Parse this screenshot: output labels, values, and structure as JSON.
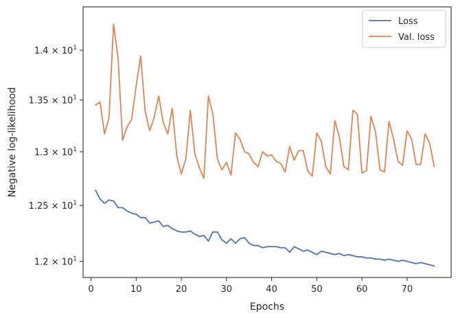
{
  "chart_data": {
    "type": "line",
    "title": "",
    "xlabel": "Epochs",
    "ylabel": "Negative log-likelihood",
    "xlim": [
      -1.75,
      79.75
    ],
    "ylim": [
      11.86,
      14.45
    ],
    "yscale": "log",
    "grid": false,
    "legend_position": "top-right",
    "x_ticks": [
      0,
      10,
      20,
      30,
      40,
      50,
      60,
      70
    ],
    "x_tick_labels": [
      "0",
      "10",
      "20",
      "30",
      "40",
      "50",
      "60",
      "70"
    ],
    "y_ticks": [
      12.0,
      12.5,
      13.0,
      13.5,
      14.0
    ],
    "y_tick_labels": [
      {
        "mantissa": "1.2",
        "base": "10",
        "exp": "1"
      },
      {
        "mantissa": "1.25",
        "base": "10",
        "exp": "1"
      },
      {
        "mantissa": "1.3",
        "base": "10",
        "exp": "1"
      },
      {
        "mantissa": "1.35",
        "base": "10",
        "exp": "1"
      },
      {
        "mantissa": "1.4",
        "base": "10",
        "exp": "1"
      }
    ],
    "x": [
      1,
      2,
      3,
      4,
      5,
      6,
      7,
      8,
      9,
      10,
      11,
      12,
      13,
      14,
      15,
      16,
      17,
      18,
      19,
      20,
      21,
      22,
      23,
      24,
      25,
      26,
      27,
      28,
      29,
      30,
      31,
      32,
      33,
      34,
      35,
      36,
      37,
      38,
      39,
      40,
      41,
      42,
      43,
      44,
      45,
      46,
      47,
      48,
      49,
      50,
      51,
      52,
      53,
      54,
      55,
      56,
      57,
      58,
      59,
      60,
      61,
      62,
      63,
      64,
      65,
      66,
      67,
      68,
      69,
      70,
      71,
      72,
      73,
      74,
      75,
      76
    ],
    "series": [
      {
        "name": "Loss",
        "color": "#4c72b0",
        "values": [
          12.64,
          12.56,
          12.52,
          12.55,
          12.54,
          12.48,
          12.48,
          12.45,
          12.43,
          12.42,
          12.39,
          12.39,
          12.34,
          12.35,
          12.36,
          12.31,
          12.32,
          12.29,
          12.27,
          12.26,
          12.26,
          12.27,
          12.24,
          12.22,
          12.23,
          12.18,
          12.26,
          12.26,
          12.19,
          12.16,
          12.2,
          12.16,
          12.2,
          12.21,
          12.16,
          12.14,
          12.14,
          12.12,
          12.13,
          12.13,
          12.13,
          12.12,
          12.12,
          12.08,
          12.13,
          12.11,
          12.09,
          12.1,
          12.08,
          12.06,
          12.09,
          12.08,
          12.07,
          12.06,
          12.07,
          12.05,
          12.06,
          12.05,
          12.04,
          12.04,
          12.03,
          12.03,
          12.02,
          12.02,
          12.01,
          12.02,
          12.01,
          12.0,
          12.01,
          12.0,
          11.99,
          11.98,
          11.99,
          11.98,
          11.97,
          11.96
        ]
      },
      {
        "name": "Val. loss",
        "color": "#dd8452",
        "values": [
          13.45,
          13.48,
          13.17,
          13.33,
          14.27,
          13.92,
          13.11,
          13.24,
          13.31,
          13.64,
          13.94,
          13.39,
          13.2,
          13.33,
          13.54,
          13.28,
          13.17,
          13.42,
          12.96,
          12.79,
          12.93,
          13.4,
          12.98,
          12.85,
          12.75,
          13.54,
          13.36,
          12.93,
          12.83,
          12.9,
          12.78,
          13.18,
          13.12,
          13.0,
          12.98,
          12.9,
          12.86,
          13.0,
          12.96,
          12.97,
          12.91,
          12.89,
          12.81,
          13.05,
          12.92,
          13.01,
          13.01,
          12.82,
          12.77,
          13.18,
          13.1,
          12.86,
          12.79,
          13.3,
          13.14,
          12.86,
          12.83,
          13.4,
          13.36,
          12.8,
          12.82,
          13.34,
          13.19,
          12.83,
          12.81,
          13.29,
          13.12,
          12.91,
          12.87,
          13.2,
          13.12,
          12.88,
          12.88,
          13.17,
          13.08,
          12.86
        ]
      }
    ]
  }
}
